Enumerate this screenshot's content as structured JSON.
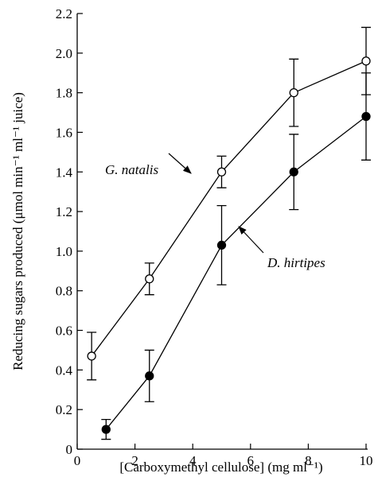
{
  "chart_data": {
    "type": "line",
    "x_label": "[Carboxymethyl cellulose] (mg ml⁻¹)",
    "y_label": "Reducing sugars produced (μmol min⁻¹ ml⁻¹ juice)",
    "xlim": [
      0,
      10
    ],
    "xticks": [
      0,
      2,
      4,
      6,
      8,
      10
    ],
    "ylim": [
      0,
      2.2
    ],
    "yticks": [
      0,
      0.2,
      0.4,
      0.6,
      0.8,
      {
        "value": 1,
        "label": "1.0"
      },
      1.2,
      1.4,
      1.6,
      1.8,
      {
        "value": 2,
        "label": "2.0"
      },
      2.2
    ],
    "series": [
      {
        "name": "G. natalis",
        "marker": "open",
        "color": "#000000",
        "x": [
          0.5,
          2.5,
          5,
          7.5,
          10
        ],
        "values": [
          0.47,
          0.86,
          1.4,
          1.8,
          1.96
        ],
        "errors": [
          0.12,
          0.08,
          0.08,
          0.17,
          0.17
        ]
      },
      {
        "name": "D. hirtipes",
        "marker": "filled",
        "color": "#000000",
        "x": [
          1,
          2.5,
          5,
          7.5,
          10
        ],
        "values": [
          0.1,
          0.37,
          1.03,
          1.4,
          1.68
        ],
        "errors": [
          0.05,
          0.13,
          0.2,
          0.19,
          0.22
        ]
      }
    ]
  }
}
